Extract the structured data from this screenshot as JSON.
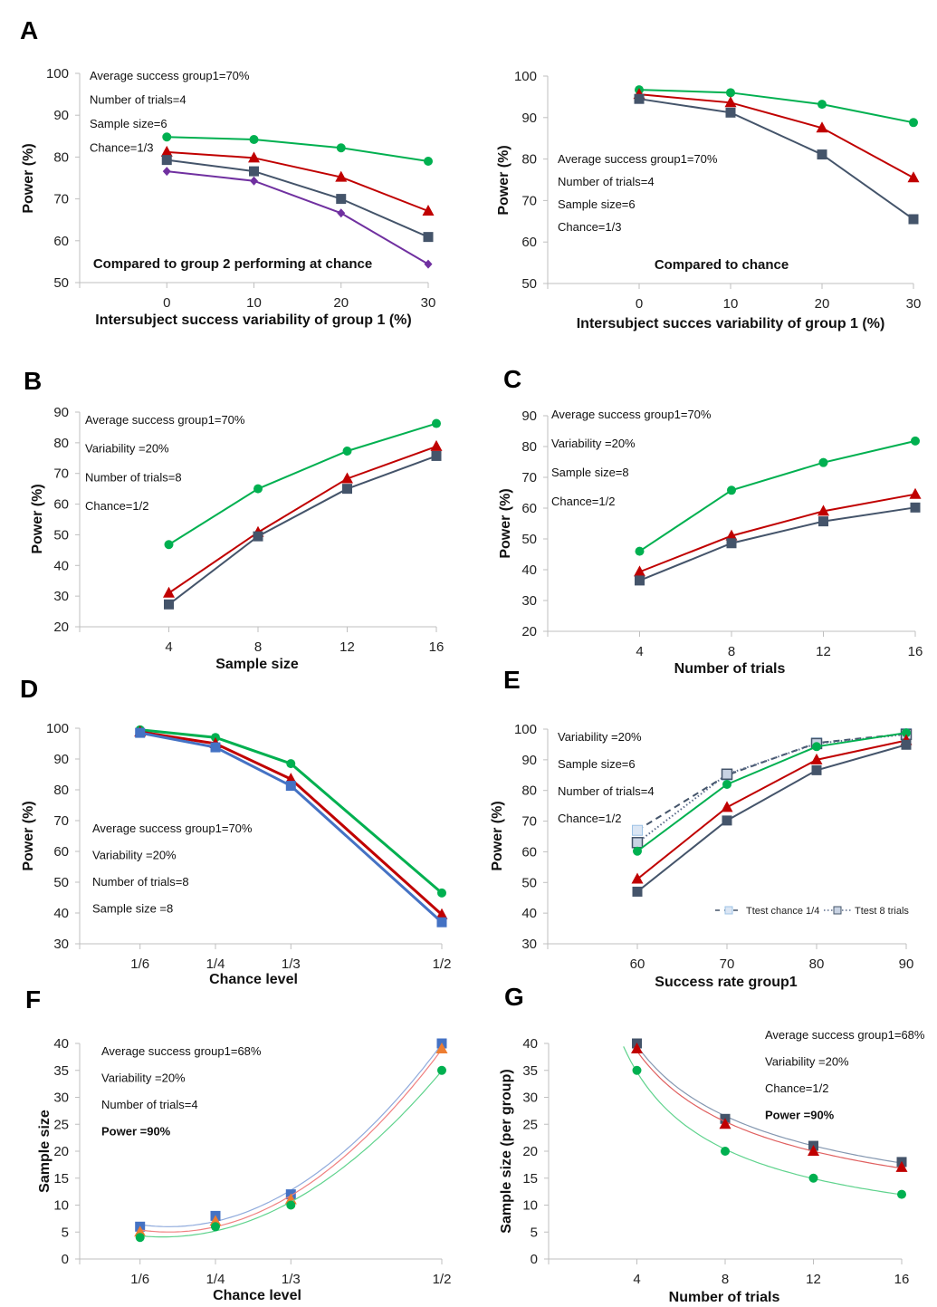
{
  "colors": {
    "green": "#00b050",
    "red": "#c00000",
    "navy": "#44546a",
    "purple": "#7030a0",
    "blue": "#4472c4",
    "orange": "#ed7d31",
    "lightblue": "#9dc3e6",
    "axis": "#bfbfbf"
  },
  "chart_data": [
    {
      "panel": "A",
      "type": "line",
      "xlabel": "Intersubject success variability  of group 1 (%)",
      "ylabel": "Power (%)",
      "ylim": [
        50,
        100
      ],
      "yticks": [
        50,
        60,
        70,
        80,
        90,
        100
      ],
      "xlim": [
        -10,
        30
      ],
      "x": [
        0,
        10,
        20,
        30
      ],
      "xticklabels": [
        "0",
        "10",
        "20",
        "30"
      ],
      "annotations": [
        "Average success group1=70%",
        "Number of trials=4",
        "Sample size=6",
        "Chance=1/3"
      ],
      "bold_annotations": [],
      "note": "Compared to group 2 performing at chance",
      "series": [
        {
          "color": "green",
          "marker": "circle",
          "values": [
            84.8,
            84.2,
            82.2,
            79.0
          ]
        },
        {
          "color": "red",
          "marker": "triangle",
          "values": [
            81.2,
            79.8,
            75.2,
            67.1
          ]
        },
        {
          "color": "navy",
          "marker": "square",
          "values": [
            79.3,
            76.6,
            70.0,
            60.9
          ]
        },
        {
          "color": "purple",
          "marker": "diamond",
          "values": [
            76.6,
            74.3,
            66.6,
            54.4
          ]
        }
      ]
    },
    {
      "panel": "",
      "type": "line",
      "xlabel": "Intersubject succes variability of group 1 (%)",
      "ylabel": "Power (%)",
      "ylim": [
        50,
        100
      ],
      "yticks": [
        50,
        60,
        70,
        80,
        90,
        100
      ],
      "xlim": [
        -10,
        30
      ],
      "x": [
        0,
        10,
        20,
        30
      ],
      "xticklabels": [
        "0",
        "10",
        "20",
        "30"
      ],
      "annotations": [
        "Average success group1=70%",
        "Number of trials=4",
        "Sample size=6",
        "Chance=1/3"
      ],
      "bold_annotations": [],
      "note": "Compared to chance",
      "series": [
        {
          "color": "green",
          "marker": "circle",
          "values": [
            96.7,
            96.0,
            93.2,
            88.8
          ]
        },
        {
          "color": "red",
          "marker": "triangle",
          "values": [
            95.6,
            93.6,
            87.5,
            75.5
          ]
        },
        {
          "color": "navy",
          "marker": "square",
          "values": [
            94.5,
            91.2,
            81.1,
            65.5
          ]
        }
      ]
    },
    {
      "panel": "B",
      "type": "line",
      "xlabel": "Sample size",
      "ylabel": "Power (%)",
      "ylim": [
        20,
        90
      ],
      "yticks": [
        20,
        30,
        40,
        50,
        60,
        70,
        80,
        90
      ],
      "xlim": [
        0,
        16
      ],
      "x": [
        4,
        8,
        12,
        16
      ],
      "xticklabels": [
        "4",
        "8",
        "12",
        "16"
      ],
      "annotations": [
        "Average success group1=70%",
        "Variability =20%",
        "Number of trials=8",
        "Chance=1/2"
      ],
      "bold_annotations": [],
      "series": [
        {
          "color": "green",
          "marker": "circle",
          "values": [
            46.8,
            65.0,
            77.3,
            86.3
          ]
        },
        {
          "color": "red",
          "marker": "triangle",
          "values": [
            31.0,
            50.8,
            68.3,
            78.8
          ]
        },
        {
          "color": "navy",
          "marker": "square",
          "values": [
            27.3,
            49.5,
            65.0,
            75.7
          ]
        }
      ]
    },
    {
      "panel": "C",
      "type": "line",
      "xlabel": "Number of trials",
      "ylabel": "Power (%)",
      "ylim": [
        20,
        90
      ],
      "yticks": [
        20,
        30,
        40,
        50,
        60,
        70,
        80,
        90
      ],
      "xlim": [
        0,
        16
      ],
      "x": [
        4,
        8,
        12,
        16
      ],
      "xticklabels": [
        "4",
        "8",
        "12",
        "16"
      ],
      "annotations": [
        "Average success group1=70%",
        "Variability =20%",
        "Sample size=8",
        "Chance=1/2"
      ],
      "bold_annotations": [],
      "series": [
        {
          "color": "green",
          "marker": "circle",
          "values": [
            46.0,
            65.8,
            74.8,
            81.8
          ]
        },
        {
          "color": "red",
          "marker": "triangle",
          "values": [
            39.3,
            51.0,
            59.0,
            64.5
          ]
        },
        {
          "color": "navy",
          "marker": "square",
          "values": [
            36.5,
            48.6,
            55.7,
            60.2
          ]
        }
      ]
    },
    {
      "panel": "D",
      "type": "line",
      "xlabel": "Chance level",
      "ylabel": "Power (%)",
      "ylim": [
        30,
        100
      ],
      "yticks": [
        30,
        40,
        50,
        60,
        70,
        80,
        90,
        100
      ],
      "xlim": [
        0.1,
        0.5
      ],
      "x": [
        0.1667,
        0.25,
        0.3333,
        0.5
      ],
      "xticklabels": [
        "1/6",
        "1/4",
        "1/3",
        "1/2"
      ],
      "annotations": [
        "Average success group1=70%",
        "Variability =20%",
        "Number of trials=8",
        "Sample size =8"
      ],
      "bold_annotations": [],
      "series": [
        {
          "color": "green",
          "marker": "circle",
          "values": [
            99.5,
            97.0,
            88.5,
            46.5
          ],
          "width": 3
        },
        {
          "color": "red",
          "marker": "triangle",
          "values": [
            98.8,
            95.0,
            83.5,
            39.5
          ],
          "width": 3
        },
        {
          "color": "blue",
          "marker": "square",
          "values": [
            98.5,
            93.8,
            81.3,
            37.0
          ],
          "width": 3
        }
      ]
    },
    {
      "panel": "E",
      "type": "line",
      "xlabel": "Success rate group1",
      "ylabel": "Power (%)",
      "ylim": [
        30,
        100
      ],
      "yticks": [
        30,
        40,
        50,
        60,
        70,
        80,
        90,
        100
      ],
      "xlim": [
        50,
        90
      ],
      "x": [
        60,
        70,
        80,
        90
      ],
      "xticklabels": [
        "60",
        "70",
        "80",
        "90"
      ],
      "annotations": [
        "Variability =20%",
        "Sample size=6",
        "Number of trials=4",
        "Chance=1/2"
      ],
      "bold_annotations": [],
      "legend": "bottom-right",
      "series": [
        {
          "color": "lightblue",
          "marker": "square",
          "dash": "dashed",
          "name": "Ttest chance 1/4",
          "values": [
            67.0,
            85.0,
            95.5,
            98.5
          ]
        },
        {
          "color": "navy",
          "marker": "square-open",
          "dash": "dotted",
          "name": "Ttest 8 trials",
          "values": [
            63.0,
            85.3,
            95.3,
            98.3
          ]
        },
        {
          "color": "green",
          "marker": "circle",
          "values": [
            60.2,
            82.0,
            94.3,
            98.8
          ]
        },
        {
          "color": "red",
          "marker": "triangle",
          "values": [
            51.1,
            74.5,
            90.0,
            96.3
          ]
        },
        {
          "color": "navy",
          "marker": "square",
          "values": [
            47.0,
            70.2,
            86.6,
            94.9
          ]
        }
      ]
    },
    {
      "panel": "F",
      "type": "scatter",
      "xlabel": "Chance level",
      "ylabel": "Sample size",
      "ylim": [
        0,
        40
      ],
      "yticks": [
        0,
        5,
        10,
        15,
        20,
        25,
        30,
        35,
        40
      ],
      "xlim": [
        0.1,
        0.5
      ],
      "x": [
        0.1667,
        0.25,
        0.3333,
        0.5
      ],
      "xticklabels": [
        "1/6",
        "1/4",
        "1/3",
        "1/2"
      ],
      "trend": "polynomial",
      "annotations": [
        "Average success group1=68%",
        "Variability =20%",
        "Number of trials=4"
      ],
      "bold_annotations": [
        "Power =90%"
      ],
      "series": [
        {
          "color": "blue",
          "marker": "square",
          "values": [
            6,
            8,
            12,
            40
          ]
        },
        {
          "color": "orange",
          "marker": "triangle",
          "values": [
            5,
            7,
            11,
            39
          ]
        },
        {
          "color": "green",
          "marker": "circle",
          "values": [
            4,
            6,
            10,
            35
          ]
        }
      ]
    },
    {
      "panel": "G",
      "type": "scatter",
      "xlabel": "Number of trials",
      "ylabel": "Sample size (per group)",
      "ylim": [
        0,
        40
      ],
      "yticks": [
        0,
        5,
        10,
        15,
        20,
        25,
        30,
        35,
        40
      ],
      "xlim": [
        0,
        16
      ],
      "x": [
        4,
        8,
        12,
        16
      ],
      "xticklabels": [
        "4",
        "8",
        "12",
        "16"
      ],
      "trend": "power",
      "annotations": [
        "Average success group1=68%",
        "Variability =20%",
        "Chance=1/2"
      ],
      "bold_annotations": [
        "Power =90%"
      ],
      "series": [
        {
          "color": "navy",
          "marker": "square",
          "values": [
            40,
            26,
            21,
            18
          ]
        },
        {
          "color": "red",
          "marker": "triangle",
          "values": [
            39,
            25,
            20,
            17
          ]
        },
        {
          "color": "green",
          "marker": "circle",
          "values": [
            35,
            20,
            15,
            12
          ]
        }
      ]
    }
  ]
}
